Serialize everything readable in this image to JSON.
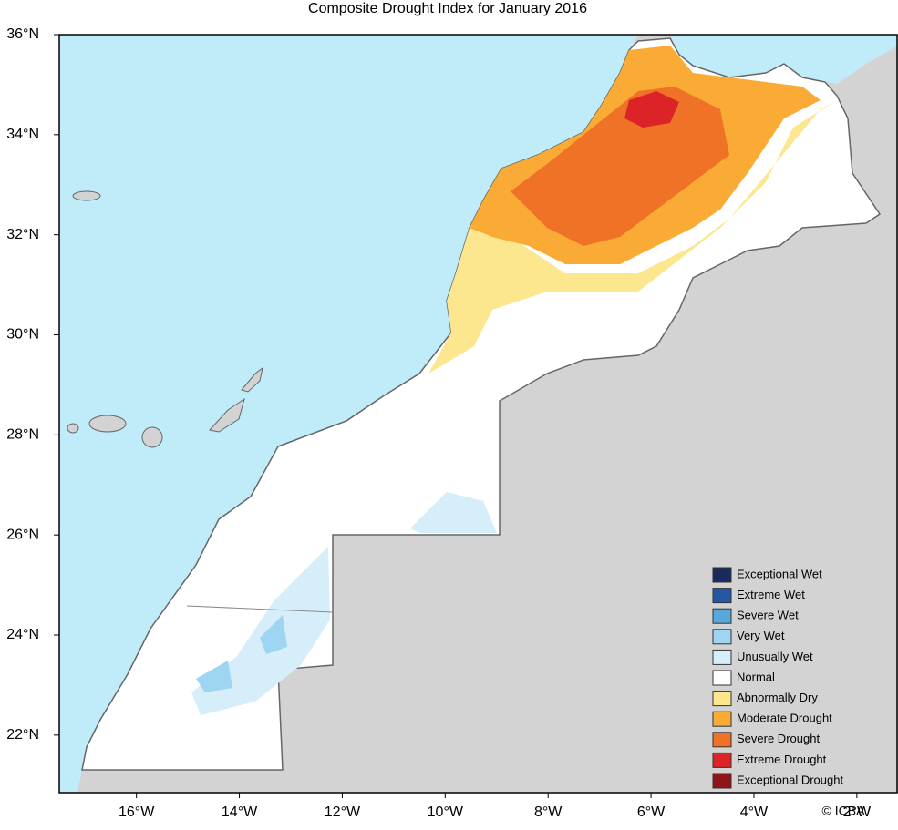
{
  "chart_data": {
    "type": "map",
    "title": "Composite Drought Index for January 2016",
    "xlim": [
      -17.5,
      -1.2
    ],
    "ylim": [
      20.85,
      36
    ],
    "xticks": [
      {
        "value": -16,
        "label": "16°W"
      },
      {
        "value": -14,
        "label": "14°W"
      },
      {
        "value": -12,
        "label": "12°W"
      },
      {
        "value": -10,
        "label": "10°W"
      },
      {
        "value": -8,
        "label": "8°W"
      },
      {
        "value": -6,
        "label": "6°W"
      },
      {
        "value": -4,
        "label": "4°W"
      },
      {
        "value": -2,
        "label": "2°W"
      }
    ],
    "yticks": [
      {
        "value": 22,
        "label": "22°N"
      },
      {
        "value": 24,
        "label": "24°N"
      },
      {
        "value": 26,
        "label": "26°N"
      },
      {
        "value": 28,
        "label": "28°N"
      },
      {
        "value": 30,
        "label": "30°N"
      },
      {
        "value": 32,
        "label": "32°N"
      },
      {
        "value": 34,
        "label": "34°N"
      },
      {
        "value": 36,
        "label": "36°N"
      }
    ],
    "legend": [
      {
        "name": "Exceptional Wet",
        "color": "#1a2a5e"
      },
      {
        "name": "Extreme Wet",
        "color": "#2357a6"
      },
      {
        "name": "Severe Wet",
        "color": "#5aa7dc"
      },
      {
        "name": "Very Wet",
        "color": "#9ed5f2"
      },
      {
        "name": "Unusually Wet",
        "color": "#d6eefa"
      },
      {
        "name": "Normal",
        "color": "#ffffff"
      },
      {
        "name": "Abnormally Dry",
        "color": "#fce68e"
      },
      {
        "name": "Moderate Drought",
        "color": "#f9ab35"
      },
      {
        "name": "Severe Drought",
        "color": "#f07227"
      },
      {
        "name": "Extreme Drought",
        "color": "#dc2327"
      },
      {
        "name": "Exceptional Drought",
        "color": "#8e1519"
      }
    ],
    "copyright": "© ICBA"
  }
}
